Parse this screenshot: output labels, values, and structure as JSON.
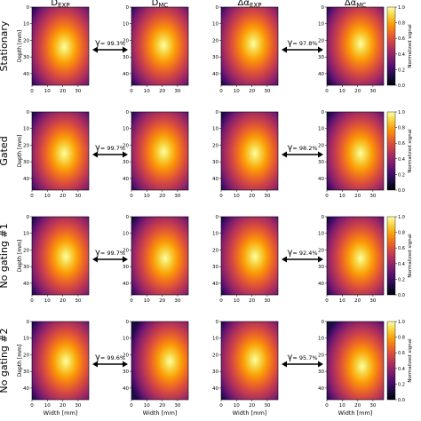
{
  "chart_data": {
    "type": "heatmap",
    "colormap": "inferno",
    "column_titles": [
      {
        "base": "D",
        "sub": "EXP"
      },
      {
        "base": "D",
        "sub": "MC"
      },
      {
        "base": "Δα",
        "sub": "EXP"
      },
      {
        "base": "Δα",
        "sub": "MC"
      }
    ],
    "row_labels": [
      "Stationary",
      "Gated",
      "No gating #1",
      "No gating #2"
    ],
    "gamma_prefix": "γ",
    "gamma_pass_rates": [
      [
        "= 99.3%",
        "= 97.8%"
      ],
      [
        "= 99.7%",
        "= 98.2%"
      ],
      [
        "= 99.7%",
        "= 92.4%"
      ],
      [
        "= 99.6%",
        "= 95.7%"
      ]
    ],
    "xlabel": "Width [mm]",
    "ylabel": "Depth [mm]",
    "xlim": [
      0,
      37
    ],
    "ylim": [
      47,
      0
    ],
    "x_ticks": [
      "0",
      "10",
      "20",
      "30"
    ],
    "y_ticks": [
      "0",
      "10",
      "20",
      "30",
      "40"
    ],
    "colorbar": {
      "label": "Normalized signal",
      "range": [
        0.0,
        1.0
      ],
      "ticks": [
        "0.0",
        "0.2",
        "0.4",
        "0.6",
        "0.8",
        "1.0"
      ]
    },
    "panels": [
      [
        {
          "hotspot_center_mm": [
            21,
            24
          ],
          "peak": 1.0
        },
        {
          "hotspot_center_mm": [
            21,
            23
          ],
          "peak": 1.0
        },
        {
          "hotspot_center_mm": [
            21,
            22
          ],
          "peak": 1.0
        },
        {
          "hotspot_center_mm": [
            22,
            22
          ],
          "peak": 1.0
        }
      ],
      [
        {
          "hotspot_center_mm": [
            21,
            25
          ],
          "peak": 1.0
        },
        {
          "hotspot_center_mm": [
            21,
            24
          ],
          "peak": 1.0
        },
        {
          "hotspot_center_mm": [
            22,
            25
          ],
          "peak": 1.0
        },
        {
          "hotspot_center_mm": [
            22,
            25
          ],
          "peak": 1.0
        }
      ],
      [
        {
          "hotspot_center_mm": [
            22,
            24
          ],
          "peak": 1.0
        },
        {
          "hotspot_center_mm": [
            22,
            25
          ],
          "peak": 1.0
        },
        {
          "hotspot_center_mm": [
            22,
            24
          ],
          "peak": 1.0
        },
        {
          "hotspot_center_mm": [
            22,
            25
          ],
          "peak": 1.0
        }
      ],
      [
        {
          "hotspot_center_mm": [
            22,
            24
          ],
          "peak": 1.0
        },
        {
          "hotspot_center_mm": [
            25,
            24
          ],
          "peak": 1.0
        },
        {
          "hotspot_center_mm": [
            22,
            23
          ],
          "peak": 1.0
        },
        {
          "hotspot_center_mm": [
            23,
            27
          ],
          "peak": 1.0
        }
      ]
    ]
  }
}
